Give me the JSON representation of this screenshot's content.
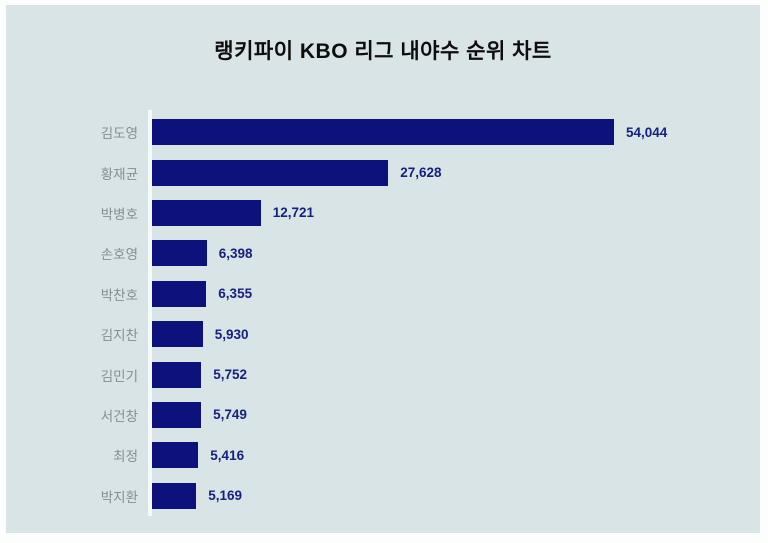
{
  "title": "랭키파이 KBO 리그 내야수 순위 차트",
  "colors": {
    "panel_background": "#d9e4e6",
    "frame": "#fcfefe",
    "bar": "#0d117b",
    "value_text": "#16207f",
    "category_text": "#848f94",
    "axis_line": "#f4f9f9",
    "title_text": "#0d0d0d"
  },
  "chart_data": {
    "type": "bar",
    "orientation": "horizontal",
    "title": "랭키파이 KBO 리그 내야수 순위 차트",
    "categories": [
      "김도영",
      "황재균",
      "박병호",
      "손호영",
      "박찬호",
      "김지찬",
      "김민기",
      "서건창",
      "최정",
      "박지환"
    ],
    "values": [
      54044,
      27628,
      12721,
      6398,
      6355,
      5930,
      5752,
      5749,
      5416,
      5169
    ],
    "value_labels": [
      "54,044",
      "27,628",
      "12,721",
      "6,398",
      "6,355",
      "5,930",
      "5,752",
      "5,749",
      "5,416",
      "5,169"
    ],
    "xlabel": "",
    "ylabel": "",
    "xlim": [
      0,
      54044
    ],
    "grid": false,
    "legend": null
  }
}
